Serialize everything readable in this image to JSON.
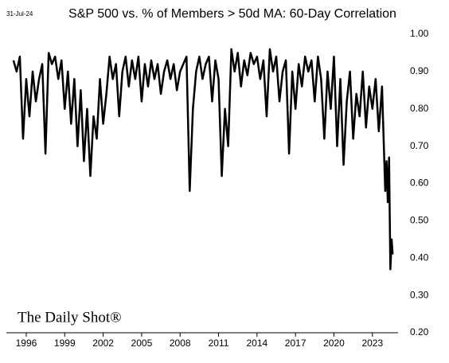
{
  "chart_data": {
    "type": "line",
    "title": "S&P 500 vs. % of Members > 50d MA: 60-Day Correlation",
    "date_label": "31-Jul-24",
    "watermark": "The Daily Shot®",
    "color": "#000000",
    "grid": false,
    "xlim": [
      1994.45,
      2025.0
    ],
    "xticks": [
      1996,
      1999,
      2002,
      2005,
      2008,
      2011,
      2014,
      2017,
      2020,
      2023
    ],
    "ylim": [
      0.2,
      1.0
    ],
    "yticks": [
      {
        "value": 0.2,
        "label": "0.20"
      },
      {
        "value": 0.3,
        "label": "0.30"
      },
      {
        "value": 0.4,
        "label": "0.40"
      },
      {
        "value": 0.5,
        "label": "0.50"
      },
      {
        "value": 0.6,
        "label": "0.60"
      },
      {
        "value": 0.7,
        "label": "0.70"
      },
      {
        "value": 0.8,
        "label": "0.80"
      },
      {
        "value": 0.9,
        "label": "0.90"
      },
      {
        "value": 1.0,
        "label": "1.00"
      }
    ],
    "x": [
      1995.0,
      1995.25,
      1995.5,
      1995.75,
      1996.0,
      1996.25,
      1996.5,
      1996.75,
      1997.0,
      1997.25,
      1997.5,
      1997.75,
      1998.0,
      1998.25,
      1998.5,
      1998.75,
      1999.0,
      1999.25,
      1999.5,
      1999.75,
      2000.0,
      2000.25,
      2000.5,
      2000.75,
      2001.0,
      2001.25,
      2001.5,
      2001.75,
      2002.0,
      2002.25,
      2002.5,
      2002.75,
      2003.0,
      2003.25,
      2003.5,
      2003.75,
      2004.0,
      2004.25,
      2004.5,
      2004.75,
      2005.0,
      2005.25,
      2005.5,
      2005.75,
      2006.0,
      2006.25,
      2006.5,
      2006.75,
      2007.0,
      2007.25,
      2007.5,
      2007.75,
      2008.0,
      2008.25,
      2008.5,
      2008.75,
      2009.0,
      2009.25,
      2009.5,
      2009.75,
      2010.0,
      2010.25,
      2010.5,
      2010.75,
      2011.0,
      2011.25,
      2011.5,
      2011.75,
      2012.0,
      2012.25,
      2012.5,
      2012.75,
      2013.0,
      2013.25,
      2013.5,
      2013.75,
      2014.0,
      2014.25,
      2014.5,
      2014.75,
      2015.0,
      2015.25,
      2015.5,
      2015.75,
      2016.0,
      2016.25,
      2016.5,
      2016.75,
      2017.0,
      2017.25,
      2017.5,
      2017.75,
      2018.0,
      2018.25,
      2018.5,
      2018.75,
      2019.0,
      2019.25,
      2019.5,
      2019.75,
      2020.0,
      2020.25,
      2020.5,
      2020.75,
      2021.0,
      2021.25,
      2021.5,
      2021.75,
      2022.0,
      2022.25,
      2022.5,
      2022.75,
      2023.0,
      2023.25,
      2023.5,
      2023.75,
      2024.0,
      2024.1,
      2024.2,
      2024.3,
      2024.4,
      2024.5,
      2024.58
    ],
    "values": [
      0.93,
      0.9,
      0.94,
      0.72,
      0.88,
      0.78,
      0.9,
      0.82,
      0.88,
      0.92,
      0.68,
      0.95,
      0.92,
      0.94,
      0.88,
      0.93,
      0.8,
      0.9,
      0.76,
      0.88,
      0.7,
      0.85,
      0.66,
      0.8,
      0.62,
      0.78,
      0.72,
      0.88,
      0.76,
      0.84,
      0.94,
      0.88,
      0.92,
      0.78,
      0.9,
      0.94,
      0.86,
      0.93,
      0.88,
      0.94,
      0.82,
      0.92,
      0.86,
      0.93,
      0.88,
      0.92,
      0.84,
      0.9,
      0.93,
      0.88,
      0.92,
      0.85,
      0.9,
      0.92,
      0.94,
      0.58,
      0.8,
      0.9,
      0.94,
      0.88,
      0.92,
      0.94,
      0.82,
      0.93,
      0.88,
      0.62,
      0.8,
      0.7,
      0.96,
      0.9,
      0.95,
      0.86,
      0.93,
      0.89,
      0.95,
      0.92,
      0.94,
      0.88,
      0.93,
      0.78,
      0.96,
      0.9,
      0.94,
      0.82,
      0.9,
      0.93,
      0.68,
      0.9,
      0.8,
      0.92,
      0.86,
      0.94,
      0.9,
      0.93,
      0.82,
      0.94,
      0.88,
      0.72,
      0.9,
      0.8,
      0.94,
      0.7,
      0.88,
      0.65,
      0.82,
      0.9,
      0.72,
      0.84,
      0.78,
      0.9,
      0.75,
      0.86,
      0.8,
      0.88,
      0.74,
      0.86,
      0.58,
      0.66,
      0.55,
      0.67,
      0.37,
      0.45,
      0.41
    ]
  }
}
